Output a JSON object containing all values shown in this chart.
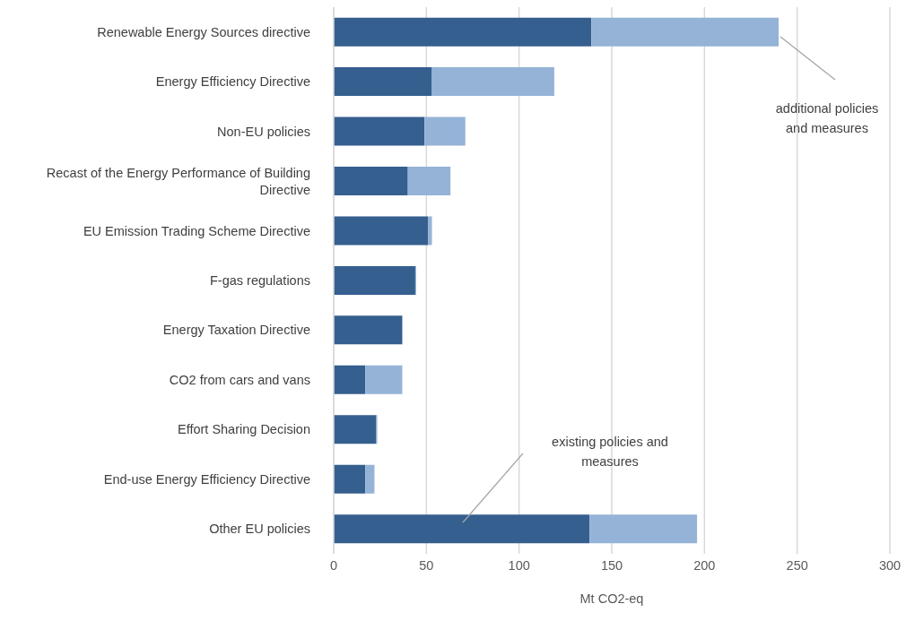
{
  "chart_data": {
    "type": "bar",
    "orientation": "horizontal",
    "stacked": true,
    "xlabel": "Mt CO2-eq",
    "categories": [
      "Renewable Energy Sources directive",
      "Energy Efficiency Directive",
      "Non-EU policies",
      "Recast of the Energy Performance of Building Directive",
      "EU Emission Trading Scheme Directive",
      "F-gas regulations",
      "Energy Taxation Directive",
      "CO2 from cars and vans",
      "Effort Sharing Decision",
      "End-use Energy Efficiency Directive",
      "Other EU policies"
    ],
    "series": [
      {
        "color": "#355f8f",
        "values": [
          139,
          53,
          49,
          40,
          51,
          44,
          37,
          17,
          23,
          17,
          138
        ]
      },
      {
        "color": "#95b3d7",
        "values": [
          101,
          66,
          22,
          23,
          2,
          0.5,
          0,
          20,
          0.5,
          5,
          58
        ]
      }
    ],
    "xlim": [
      0,
      300
    ],
    "xticks": [
      0,
      50,
      100,
      150,
      200,
      250,
      300
    ],
    "grid": "x",
    "legend": false,
    "annotations": [
      "existing policies and measures",
      "additional policies and measures"
    ]
  }
}
